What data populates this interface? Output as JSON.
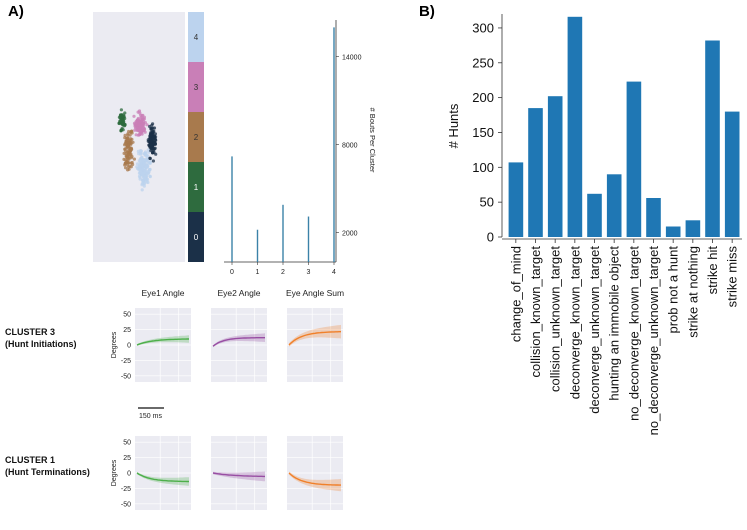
{
  "panel_a": {
    "label": "A)",
    "cluster_colors": {
      "0": "#1b3048",
      "1": "#2e6b3e",
      "2": "#a87a4d",
      "3": "#c97fb7",
      "4": "#bcd3ee"
    },
    "colorbar_labels": [
      "0",
      "1",
      "2",
      "3",
      "4"
    ],
    "histogram": {
      "ylabel": "# Bouts Per Cluster",
      "xticks": [
        "0",
        "1",
        "2",
        "3",
        "4"
      ],
      "yticks": [
        "2000",
        "8000",
        "14000"
      ],
      "bar_color": "#3b82a8"
    },
    "traces": {
      "columns": [
        "Eye1 Angle",
        "Eye2 Angle",
        "Eye Angle Sum"
      ],
      "ylabel": "Degrees",
      "yticks": [
        "50",
        "25",
        "0",
        "-25",
        "-50"
      ],
      "scale_bar": "150 ms",
      "colors": [
        "#4daf4a",
        "#984ea3",
        "#f0802a"
      ],
      "rows": [
        {
          "title": "CLUSTER 3",
          "subtitle": "(Hunt Initiations)"
        },
        {
          "title": "CLUSTER 1",
          "subtitle": "(Hunt Terminations)"
        }
      ]
    }
  },
  "panel_b": {
    "label": "B)"
  },
  "chart_data": [
    {
      "type": "bar",
      "title": "",
      "xlabel": "",
      "ylabel": "# Bouts Per Cluster",
      "categories": [
        "0",
        "1",
        "2",
        "3",
        "4"
      ],
      "values": [
        7200,
        2200,
        3900,
        3100,
        16000
      ],
      "ylim": [
        0,
        16500
      ]
    },
    {
      "type": "bar",
      "title": "",
      "xlabel": "",
      "ylabel": "# Hunts",
      "categories": [
        "change_of_mind",
        "collision_known_target",
        "collision_unknown_target",
        "deconverge_known_target",
        "deconverge_unknown_target",
        "hunting an immobile object",
        "no_deconverge_known_target",
        "no_deconverge_unknown_target",
        "prob not a hunt",
        "strike at nothing",
        "strike hit",
        "strike miss"
      ],
      "values": [
        107,
        185,
        202,
        316,
        62,
        90,
        223,
        56,
        15,
        24,
        282,
        180
      ],
      "ylim": [
        0,
        320
      ],
      "yticks": [
        0,
        50,
        100,
        150,
        200,
        250,
        300
      ],
      "color": "#1f77b4",
      "grid": false
    }
  ]
}
